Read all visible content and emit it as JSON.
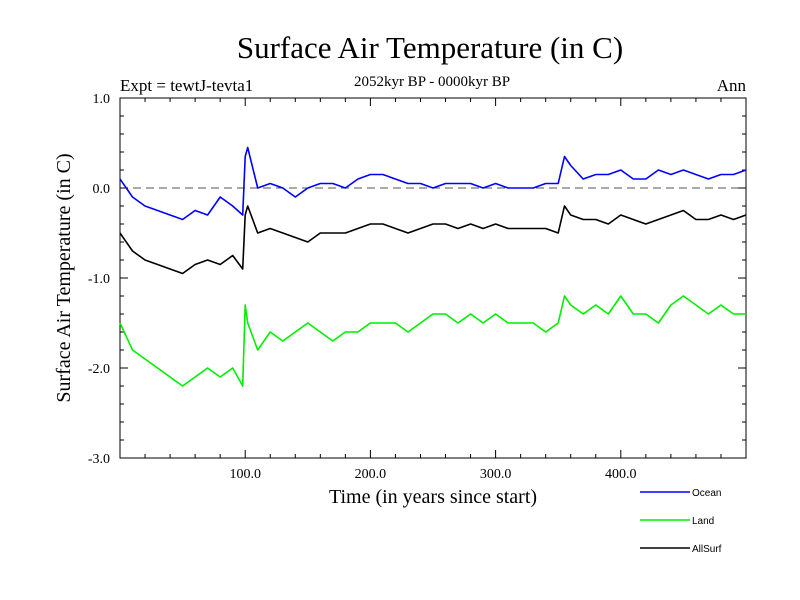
{
  "chart_data": {
    "type": "line",
    "title": "Surface Air Temperature (in C)",
    "subtitle": "2052kyr BP - 0000kyr BP",
    "experiment": "Expt = tewtJ-tevta1",
    "season": "Ann",
    "xlabel": "Time (in years since start)",
    "ylabel": "Surface Air Temperature (in C)",
    "xlim": [
      0,
      500
    ],
    "ylim": [
      -3.0,
      1.0
    ],
    "x_ticks": [
      100,
      200,
      300,
      400
    ],
    "x_tick_labels": [
      "100.0",
      "200.0",
      "300.0",
      "400.0"
    ],
    "y_ticks": [
      1.0,
      0.0,
      -1.0,
      -2.0,
      -3.0
    ],
    "y_tick_labels": [
      "1.0",
      "0.0",
      "-1.0",
      "-2.0",
      "-3.0"
    ],
    "reference_line": 0.0,
    "series": [
      {
        "name": "Ocean",
        "color": "#0000ff",
        "x": [
          0,
          10,
          20,
          30,
          40,
          50,
          60,
          70,
          80,
          90,
          98,
          100,
          102,
          110,
          120,
          130,
          140,
          150,
          160,
          170,
          180,
          190,
          200,
          210,
          220,
          230,
          240,
          250,
          260,
          270,
          280,
          290,
          300,
          310,
          320,
          330,
          340,
          350,
          355,
          360,
          370,
          380,
          390,
          400,
          410,
          420,
          430,
          440,
          450,
          460,
          470,
          480,
          490,
          500
        ],
        "values": [
          0.1,
          -0.1,
          -0.2,
          -0.25,
          -0.3,
          -0.35,
          -0.25,
          -0.3,
          -0.1,
          -0.2,
          -0.3,
          0.35,
          0.45,
          0.0,
          0.05,
          0.0,
          -0.1,
          0.0,
          0.05,
          0.05,
          0.0,
          0.1,
          0.15,
          0.15,
          0.1,
          0.05,
          0.05,
          0.0,
          0.05,
          0.05,
          0.05,
          0.0,
          0.05,
          0.0,
          0.0,
          0.0,
          0.05,
          0.05,
          0.35,
          0.25,
          0.1,
          0.15,
          0.15,
          0.2,
          0.1,
          0.1,
          0.2,
          0.15,
          0.2,
          0.15,
          0.1,
          0.15,
          0.15,
          0.2
        ]
      },
      {
        "name": "Land",
        "color": "#00ee00",
        "x": [
          0,
          10,
          20,
          30,
          40,
          50,
          60,
          70,
          80,
          90,
          98,
          100,
          102,
          110,
          120,
          130,
          140,
          150,
          160,
          170,
          180,
          190,
          200,
          210,
          220,
          230,
          240,
          250,
          260,
          270,
          280,
          290,
          300,
          310,
          320,
          330,
          340,
          350,
          355,
          360,
          370,
          380,
          390,
          400,
          410,
          420,
          430,
          440,
          450,
          460,
          470,
          480,
          490,
          500
        ],
        "values": [
          -1.5,
          -1.8,
          -1.9,
          -2.0,
          -2.1,
          -2.2,
          -2.1,
          -2.0,
          -2.1,
          -2.0,
          -2.2,
          -1.3,
          -1.5,
          -1.8,
          -1.6,
          -1.7,
          -1.6,
          -1.5,
          -1.6,
          -1.7,
          -1.6,
          -1.6,
          -1.5,
          -1.5,
          -1.5,
          -1.6,
          -1.5,
          -1.4,
          -1.4,
          -1.5,
          -1.4,
          -1.5,
          -1.4,
          -1.5,
          -1.5,
          -1.5,
          -1.6,
          -1.5,
          -1.2,
          -1.3,
          -1.4,
          -1.3,
          -1.4,
          -1.2,
          -1.4,
          -1.4,
          -1.5,
          -1.3,
          -1.2,
          -1.3,
          -1.4,
          -1.3,
          -1.4,
          -1.4
        ]
      },
      {
        "name": "AllSurf",
        "color": "#000000",
        "x": [
          0,
          10,
          20,
          30,
          40,
          50,
          60,
          70,
          80,
          90,
          98,
          100,
          102,
          110,
          120,
          130,
          140,
          150,
          160,
          170,
          180,
          190,
          200,
          210,
          220,
          230,
          240,
          250,
          260,
          270,
          280,
          290,
          300,
          310,
          320,
          330,
          340,
          350,
          355,
          360,
          370,
          380,
          390,
          400,
          410,
          420,
          430,
          440,
          450,
          460,
          470,
          480,
          490,
          500
        ],
        "values": [
          -0.5,
          -0.7,
          -0.8,
          -0.85,
          -0.9,
          -0.95,
          -0.85,
          -0.8,
          -0.85,
          -0.75,
          -0.9,
          -0.3,
          -0.2,
          -0.5,
          -0.45,
          -0.5,
          -0.55,
          -0.6,
          -0.5,
          -0.5,
          -0.5,
          -0.45,
          -0.4,
          -0.4,
          -0.45,
          -0.5,
          -0.45,
          -0.4,
          -0.4,
          -0.45,
          -0.4,
          -0.45,
          -0.4,
          -0.45,
          -0.45,
          -0.45,
          -0.45,
          -0.5,
          -0.2,
          -0.3,
          -0.35,
          -0.35,
          -0.4,
          -0.3,
          -0.35,
          -0.4,
          -0.35,
          -0.3,
          -0.25,
          -0.35,
          -0.35,
          -0.3,
          -0.35,
          -0.3
        ]
      }
    ]
  }
}
